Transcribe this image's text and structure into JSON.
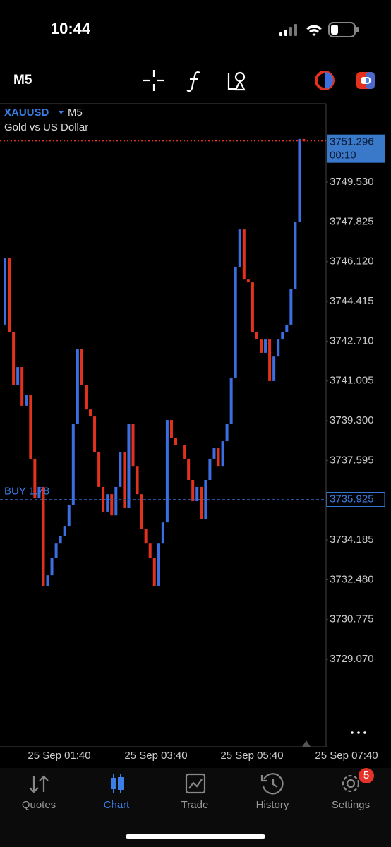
{
  "status": {
    "time": "10:44"
  },
  "toolbar": {
    "timeframe": "M5"
  },
  "chart": {
    "symbol": "XAUUSD",
    "period": "M5",
    "description": "Gold vs US Dollar"
  },
  "chart_data": {
    "type": "candlestick",
    "up_color": "#3b6ee0",
    "down_color": "#e2321e",
    "ylim": [
      3725.32,
      3752.89
    ],
    "yticks": [
      {
        "value": 3749.53,
        "label": "3749.530"
      },
      3747.825,
      {
        "value": 3746.12,
        "label": "3746.120"
      },
      3744.415,
      {
        "value": 3742.71,
        "label": "3742.710"
      },
      3741.005,
      {
        "value": 3739.3,
        "label": "3739.300"
      },
      3737.595,
      3734.185,
      {
        "value": 3732.48,
        "label": "3732.480"
      },
      3730.775,
      {
        "value": 3729.07,
        "label": "3729.070"
      }
    ],
    "x_labels": [
      "25 Sep 01:40",
      "25 Sep 03:40",
      "25 Sep 05:40",
      "25 Sep 07:40"
    ],
    "open": [
      3743.42,
      3746.29,
      3743.11,
      3740.84,
      3741.6,
      3739.94,
      3740.39,
      3737.67,
      3736.0,
      3736.46,
      3732.22,
      3732.67,
      3733.43,
      3734.03,
      3734.34,
      3734.79,
      3735.7,
      3739.18,
      3742.36,
      3740.84,
      3739.78,
      3739.48,
      3737.97,
      3736.46,
      3735.4,
      3736.15,
      3735.24,
      3736.46,
      3737.97,
      3735.55,
      3739.18,
      3737.36,
      3736.15,
      3734.64,
      3734.03,
      3733.43,
      3732.22,
      3734.03,
      3734.94,
      3739.33,
      3738.57,
      3738.27,
      3738.27,
      3737.67,
      3736.76,
      3735.85,
      3736.46,
      3735.09,
      3736.76,
      3737.67,
      3738.12,
      3737.36,
      3738.42,
      3739.18,
      3741.15,
      3745.9,
      3747.5,
      3745.38,
      3745.23,
      3743.11,
      3742.81,
      3742.21,
      3742.81,
      3741.0,
      3742.05,
      3742.81,
      3743.11,
      3743.42,
      3744.93,
      3747.81,
      3751.38
    ],
    "close": [
      3746.29,
      3743.11,
      3740.84,
      3741.6,
      3739.94,
      3740.39,
      3737.67,
      3736.0,
      3736.46,
      3732.22,
      3732.67,
      3733.43,
      3734.03,
      3734.34,
      3734.79,
      3735.7,
      3739.18,
      3742.36,
      3740.84,
      3739.78,
      3739.48,
      3737.97,
      3736.46,
      3735.4,
      3736.15,
      3735.24,
      3736.46,
      3737.97,
      3735.55,
      3739.18,
      3737.36,
      3736.15,
      3734.64,
      3734.03,
      3733.43,
      3732.22,
      3734.03,
      3734.94,
      3739.33,
      3738.57,
      3738.27,
      3738.27,
      3737.67,
      3736.76,
      3735.85,
      3736.46,
      3735.09,
      3736.76,
      3737.67,
      3738.12,
      3737.36,
      3738.42,
      3739.18,
      3741.15,
      3745.9,
      3747.5,
      3745.38,
      3745.23,
      3743.11,
      3742.81,
      3742.21,
      3742.81,
      3741.0,
      3742.05,
      3742.81,
      3743.11,
      3743.42,
      3744.93,
      3747.81,
      3751.38,
      3751.3
    ],
    "last_price": 3751.296,
    "countdown": "00:10",
    "position_label": "BUY 1.78",
    "position_price": 3735.925
  },
  "nav": {
    "items": [
      "Quotes",
      "Chart",
      "Trade",
      "History",
      "Settings"
    ],
    "active": "Chart",
    "settings_badge": 5
  }
}
